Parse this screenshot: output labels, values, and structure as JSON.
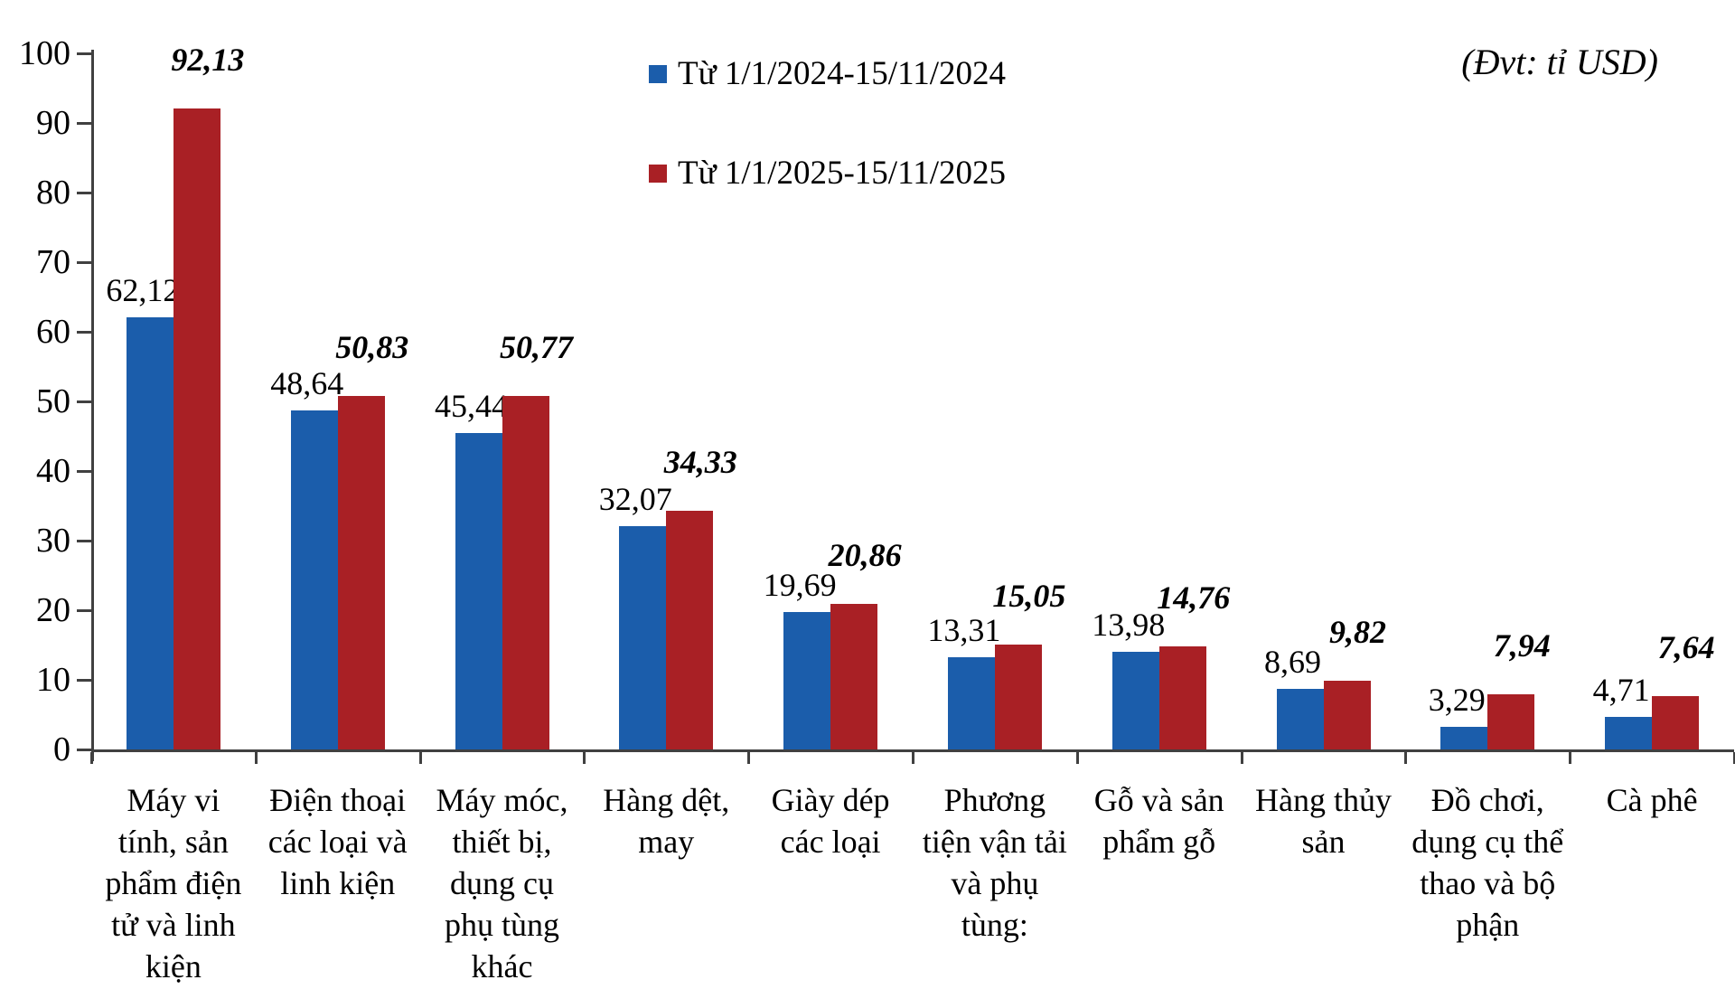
{
  "unit_label": "(Đvt: tỉ USD)",
  "chart_data": {
    "type": "bar",
    "title": "",
    "ylabel": "",
    "xlabel": "",
    "unit": "tỉ USD",
    "ylim": [
      0,
      100
    ],
    "yticks": [
      0,
      10,
      20,
      30,
      40,
      50,
      60,
      70,
      80,
      90,
      100
    ],
    "grid": false,
    "legend_position": "top-center",
    "axis_color": "#404040",
    "categories": [
      "Máy vi tính, sản phẩm điện tử và linh kiện",
      "Điện thoại các loại và linh kiện",
      "Máy móc, thiết bị, dụng cụ phụ tùng khác",
      "Hàng dệt, may",
      "Giày dép các loại",
      "Phương tiện vận tải và phụ tùng:",
      "Gỗ và sản phẩm gỗ",
      "Hàng thủy sản",
      "Đồ chơi, dụng cụ thể thao và bộ phận",
      "Cà phê"
    ],
    "series": [
      {
        "name": "Từ 1/1/2024-15/11/2024",
        "color": "#1B5DAB",
        "values": [
          62.12,
          48.64,
          45.44,
          32.07,
          19.69,
          13.31,
          13.98,
          8.69,
          3.29,
          4.71
        ],
        "labels": [
          "62,12",
          "48,64",
          "45,44",
          "32,07",
          "19,69",
          "13,31",
          "13,98",
          "8,69",
          "3,29",
          "4,71"
        ]
      },
      {
        "name": "Từ 1/1/2025-15/11/2025",
        "color": "#A92025",
        "values": [
          92.13,
          50.83,
          50.77,
          34.33,
          20.86,
          15.05,
          14.76,
          9.82,
          7.94,
          7.64
        ],
        "labels": [
          "92,13",
          "50,83",
          "50,77",
          "34,33",
          "20,86",
          "15,05",
          "14,76",
          "9,82",
          "7,94",
          "7,64"
        ]
      }
    ]
  }
}
